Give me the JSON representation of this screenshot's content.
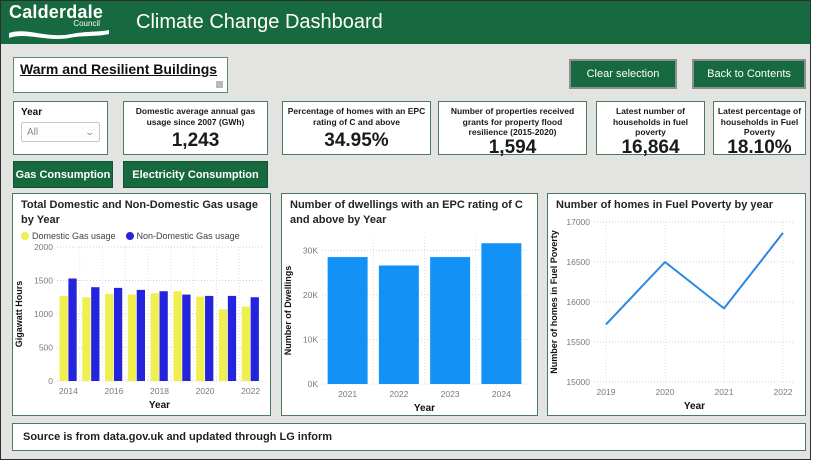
{
  "header": {
    "logo_line1": "Calderdale",
    "logo_line2": "Council",
    "title": "Climate Change Dashboard"
  },
  "toolbar": {
    "page_title": "Warm and Resilient Buildings",
    "clear_button": "Clear selection",
    "back_button": "Back to Contents"
  },
  "slicer": {
    "label": "Year",
    "value": "All"
  },
  "kpis": [
    {
      "title": "Domestic average annual gas usage since 2007 (GWh)",
      "value": "1,243"
    },
    {
      "title": "Percentage of homes with an EPC rating of C and above",
      "value": "34.95%"
    },
    {
      "title": "Number of properties received grants for property flood resilience (2015-2020)",
      "value": "1,594"
    },
    {
      "title": "Latest number of households in fuel poverty",
      "value": "16,864"
    },
    {
      "title": "Latest percentage of households in Fuel Poverty",
      "value": "18.10%"
    }
  ],
  "nav_buttons": {
    "gas": "Gas Consumption",
    "electricity": "Electricity Consumption"
  },
  "footer": {
    "source": "Source is from data.gov.uk and updated through LG inform"
  },
  "colors": {
    "brand_green": "#17693F",
    "panel_border_green": "#4A7A60",
    "domestic_yellow": "#EFEF4F",
    "non_domestic_blue": "#2424DC",
    "powerbi_blue": "#1291F7",
    "line_blue": "#2B87E0"
  },
  "chart_data": [
    {
      "type": "bar",
      "grouped": true,
      "title": "Total Domestic and Non-Domestic Gas usage by Year",
      "categories": [
        "2014",
        "2015",
        "2016",
        "2017",
        "2018",
        "2019",
        "2020",
        "2021",
        "2022"
      ],
      "xtick_labels": [
        "2014",
        "",
        "2016",
        "",
        "2018",
        "",
        "2020",
        "",
        "2022"
      ],
      "series": [
        {
          "name": "Domestic Gas usage",
          "color": "#EFEF4F",
          "values": [
            1270,
            1250,
            1300,
            1290,
            1310,
            1340,
            1260,
            1070,
            1110
          ]
        },
        {
          "name": "Non-Domestic Gas usage",
          "color": "#2424DC",
          "values": [
            1530,
            1400,
            1390,
            1360,
            1340,
            1290,
            1270,
            1270,
            1250
          ]
        }
      ],
      "xlabel": "Year",
      "ylabel": "Gigawatt Hours",
      "ylim": [
        0,
        2000
      ],
      "yticks": [
        0,
        500,
        1000,
        1500,
        2000
      ],
      "legend_position": "top",
      "grid": true
    },
    {
      "type": "bar",
      "grouped": false,
      "title": "Number of dwellings with an EPC rating of C and above by Year",
      "categories": [
        "2021",
        "2022",
        "2023",
        "2024"
      ],
      "values": [
        28500,
        26600,
        28500,
        31600
      ],
      "color": "#1291F7",
      "xlabel": "Year",
      "ylabel": "Number of Dwellings",
      "ylim": [
        0,
        33000
      ],
      "yticks": [
        0,
        10000,
        20000,
        30000
      ],
      "ytick_labels": [
        "0K",
        "10K",
        "20K",
        "30K"
      ],
      "grid": true
    },
    {
      "type": "line",
      "title": "Number of homes in Fuel Poverty by year",
      "x": [
        "2019",
        "2020",
        "2021",
        "2022"
      ],
      "values": [
        15720,
        16500,
        15920,
        16864
      ],
      "color": "#2B87E0",
      "xlabel": "Year",
      "ylabel": "Number of homes in Fuel Poverty",
      "ylim": [
        15000,
        17000
      ],
      "yticks": [
        15000,
        15500,
        16000,
        16500,
        17000
      ],
      "grid": true
    }
  ]
}
